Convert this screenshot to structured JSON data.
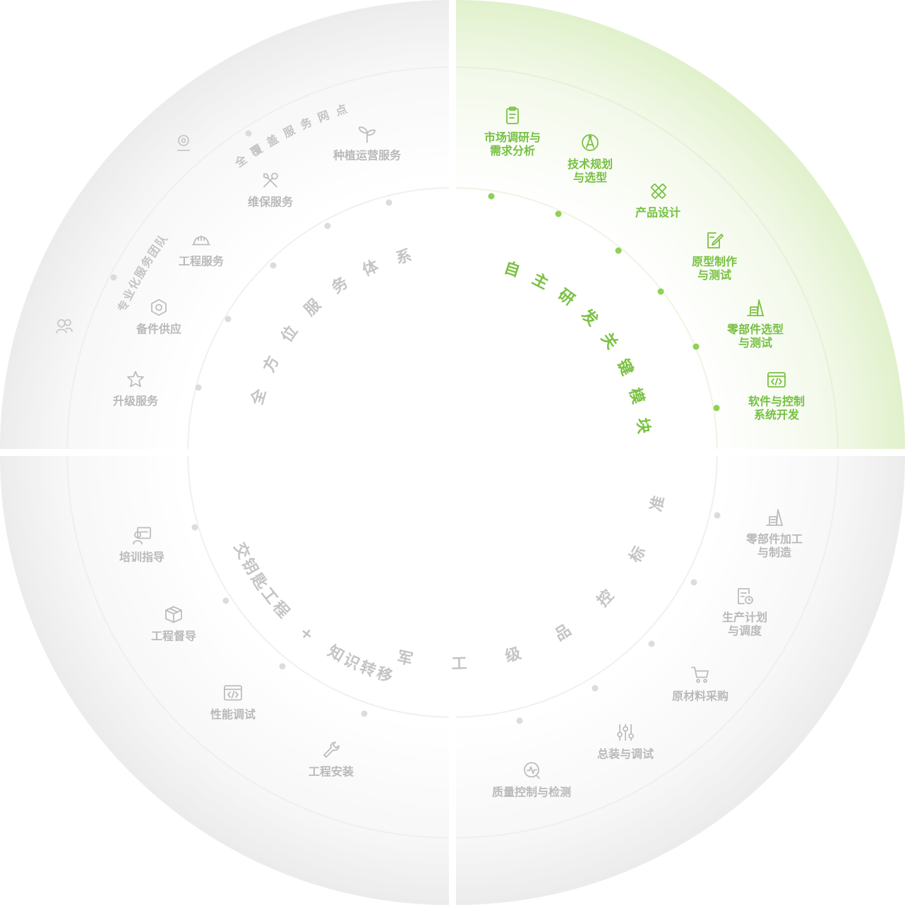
{
  "colors": {
    "accent": "#7ac142",
    "muted": "#bdbdbd"
  },
  "quadrants": {
    "top_right": {
      "arc_title": "自主研发关键模块",
      "items": [
        {
          "label": "市场调研与\n需求分析",
          "icon": "clipboard-icon"
        },
        {
          "label": "技术规划\n与选型",
          "icon": "compass-icon"
        },
        {
          "label": "产品设计",
          "icon": "ruler-pencil-icon"
        },
        {
          "label": "原型制作\n与测试",
          "icon": "edit-document-icon"
        },
        {
          "label": "零部件选型\n与测试",
          "icon": "parts-icon"
        },
        {
          "label": "软件与控制\n系统开发",
          "icon": "code-window-icon"
        }
      ]
    },
    "top_left": {
      "arc_title": "全方位服务体系",
      "outer_arc_1": "全覆盖服务网点",
      "outer_arc_2": "专业化服务团队",
      "items": [
        {
          "label": "种植运营服务",
          "icon": "sprout-icon"
        },
        {
          "label": "维保服务",
          "icon": "tools-icon"
        },
        {
          "label": "工程服务",
          "icon": "hardhat-icon"
        },
        {
          "label": "备件供应",
          "icon": "nut-icon"
        },
        {
          "label": "升级服务",
          "icon": "star-badge-icon"
        }
      ]
    },
    "bottom_left": {
      "arc_title": "交钥匙工程 + 知识转移",
      "items": [
        {
          "label": "培训指导",
          "icon": "trainer-icon"
        },
        {
          "label": "工程督导",
          "icon": "box-icon"
        },
        {
          "label": "性能调试",
          "icon": "code-window-icon"
        },
        {
          "label": "工程安装",
          "icon": "wrench-icon"
        }
      ]
    },
    "bottom_right": {
      "arc_title": "军工级品控标准",
      "items": [
        {
          "label": "零部件加工\n与制造",
          "icon": "parts-icon"
        },
        {
          "label": "生产计划\n与调度",
          "icon": "schedule-icon"
        },
        {
          "label": "原材料采购",
          "icon": "cart-icon"
        },
        {
          "label": "总装与调试",
          "icon": "sliders-icon"
        },
        {
          "label": "质量控制与检测",
          "icon": "monitor-icon"
        }
      ]
    }
  }
}
